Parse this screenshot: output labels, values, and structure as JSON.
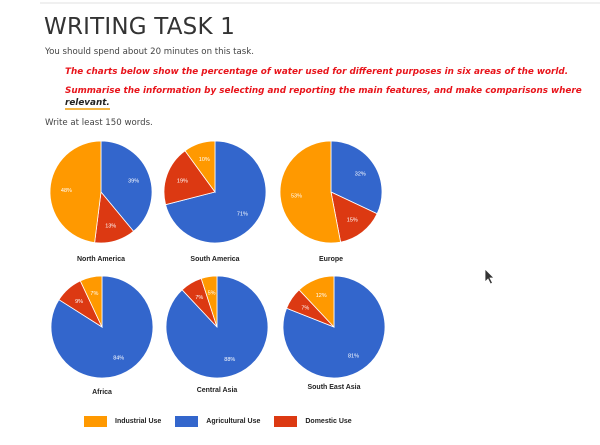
{
  "page": {
    "title": "WRITING TASK 1",
    "instruction": "You should spend about 20 minutes on this task.",
    "task_line1": "The charts below show the percentage of water used for different purposes in six areas of the world.",
    "task_line2_a": "Summarise the information by selecting and reporting the main features, and make comparisons where ",
    "task_line2_highlight": "relevant.",
    "word_count": "Write at least 150 words."
  },
  "legend": [
    {
      "label": "Industrial Use",
      "color": "#ff9900"
    },
    {
      "label": "Agricultural Use",
      "color": "#3366cc"
    },
    {
      "label": "Domestic Use",
      "color": "#dc3912"
    }
  ],
  "chart_data": {
    "type": "pie",
    "title": "Percentage of water used for different purposes in six areas of the world",
    "categories": [
      "Agricultural Use",
      "Domestic Use",
      "Industrial Use"
    ],
    "colors": {
      "Agricultural Use": "#3366cc",
      "Domestic Use": "#dc3912",
      "Industrial Use": "#ff9900"
    },
    "legend_position": "bottom",
    "charts": [
      {
        "region": "North America",
        "values": {
          "Agricultural Use": 39,
          "Domestic Use": 13,
          "Industrial Use": 48
        }
      },
      {
        "region": "South America",
        "values": {
          "Agricultural Use": 71,
          "Domestic Use": 19,
          "Industrial Use": 10
        }
      },
      {
        "region": "Europe",
        "values": {
          "Agricultural Use": 32,
          "Domestic Use": 15,
          "Industrial Use": 53
        }
      },
      {
        "region": "Africa",
        "values": {
          "Agricultural Use": 84,
          "Domestic Use": 9,
          "Industrial Use": 7
        }
      },
      {
        "region": "Central Asia",
        "values": {
          "Agricultural Use": 88,
          "Domestic Use": 7,
          "Industrial Use": 5
        }
      },
      {
        "region": "South East Asia",
        "values": {
          "Agricultural Use": 81,
          "Domestic Use": 7,
          "Industrial Use": 12
        }
      }
    ]
  }
}
